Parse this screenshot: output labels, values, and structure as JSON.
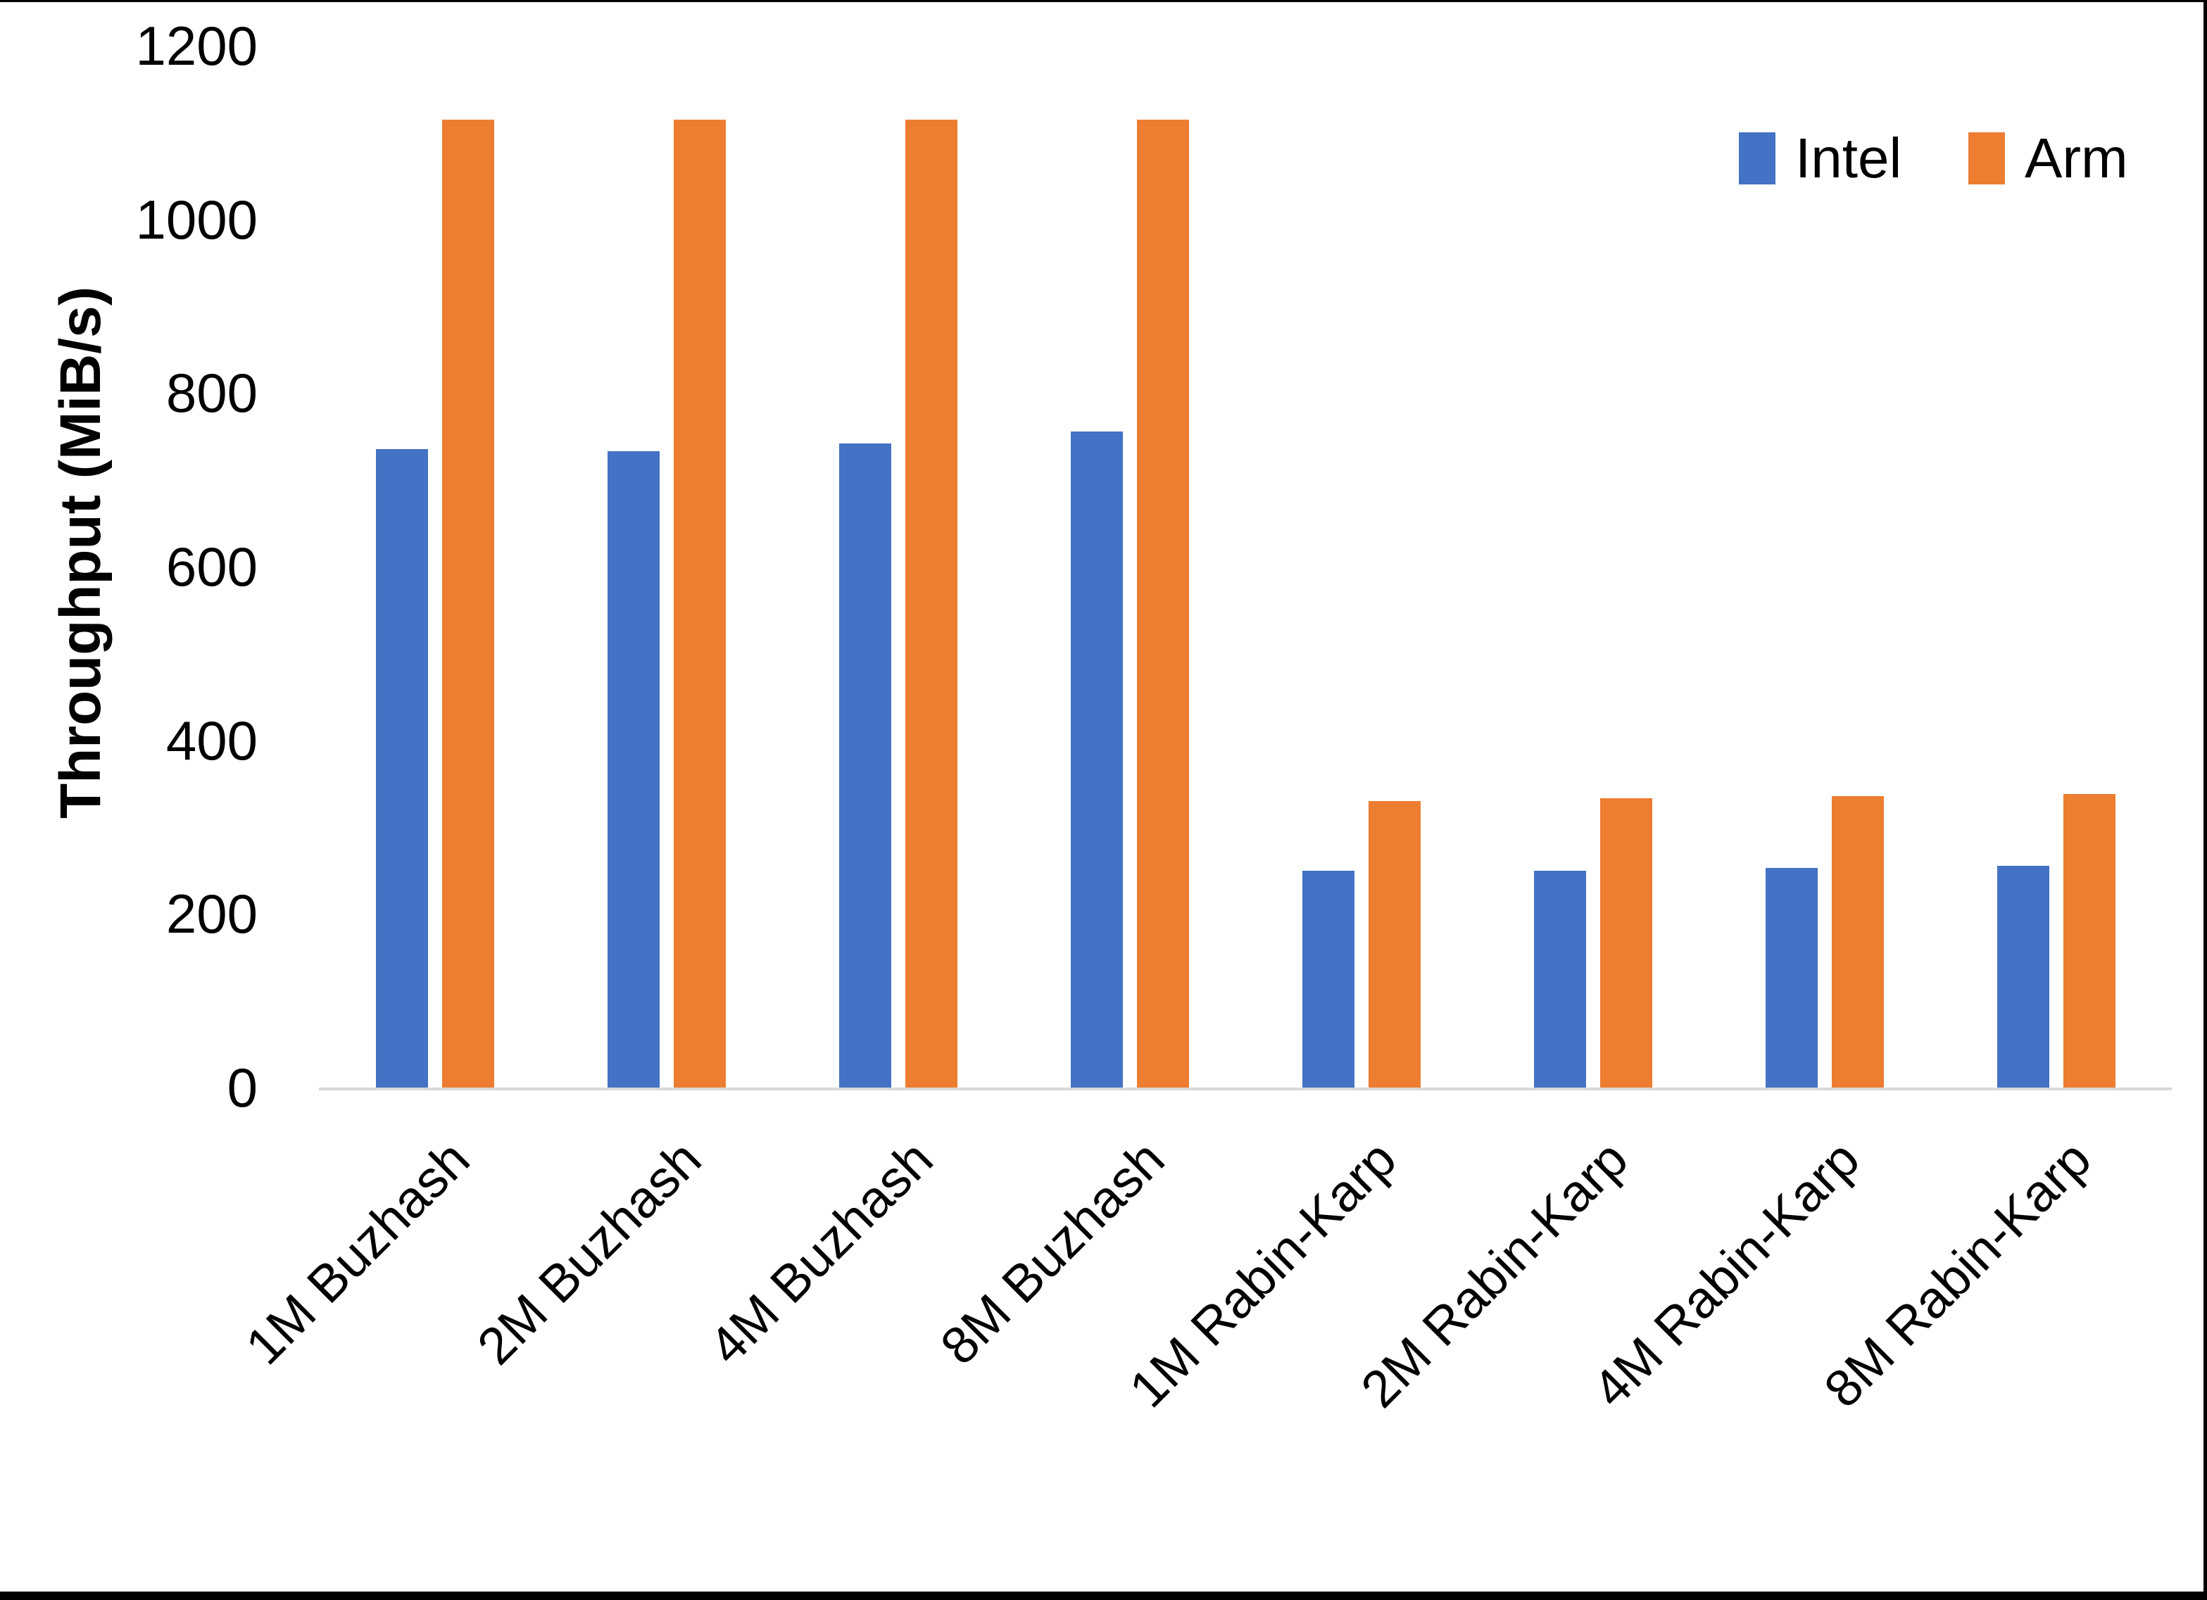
{
  "chart_data": {
    "type": "bar",
    "title": "",
    "xlabel": "",
    "ylabel": "Throughput (MiB/s)",
    "categories": [
      "1M Buzhash",
      "2M Buzhash",
      "4M Buzhash",
      "8M Buzhash",
      "1M Rabin-Karp",
      "2M Rabin-Karp",
      "4M Rabin-Karp",
      "8M Rabin-Karp"
    ],
    "series": [
      {
        "name": "Intel",
        "color": "#4472C4",
        "values": [
          735,
          733,
          742,
          756,
          250,
          250,
          253,
          255
        ]
      },
      {
        "name": "Arm",
        "color": "#ED7D31",
        "values": [
          1115,
          1115,
          1115,
          1115,
          330,
          333,
          336,
          338
        ]
      }
    ],
    "ylim": [
      0,
      1200
    ],
    "yticks": [
      0,
      200,
      400,
      600,
      800,
      1000,
      1200
    ],
    "grid": false,
    "legend_position": "top-right"
  },
  "legend": {
    "items": [
      {
        "label": "Intel",
        "color": "#4472C4"
      },
      {
        "label": "Arm",
        "color": "#ED7D31"
      }
    ]
  },
  "axis": {
    "line_color": "#D9D9D9",
    "text_color": "#000000"
  }
}
